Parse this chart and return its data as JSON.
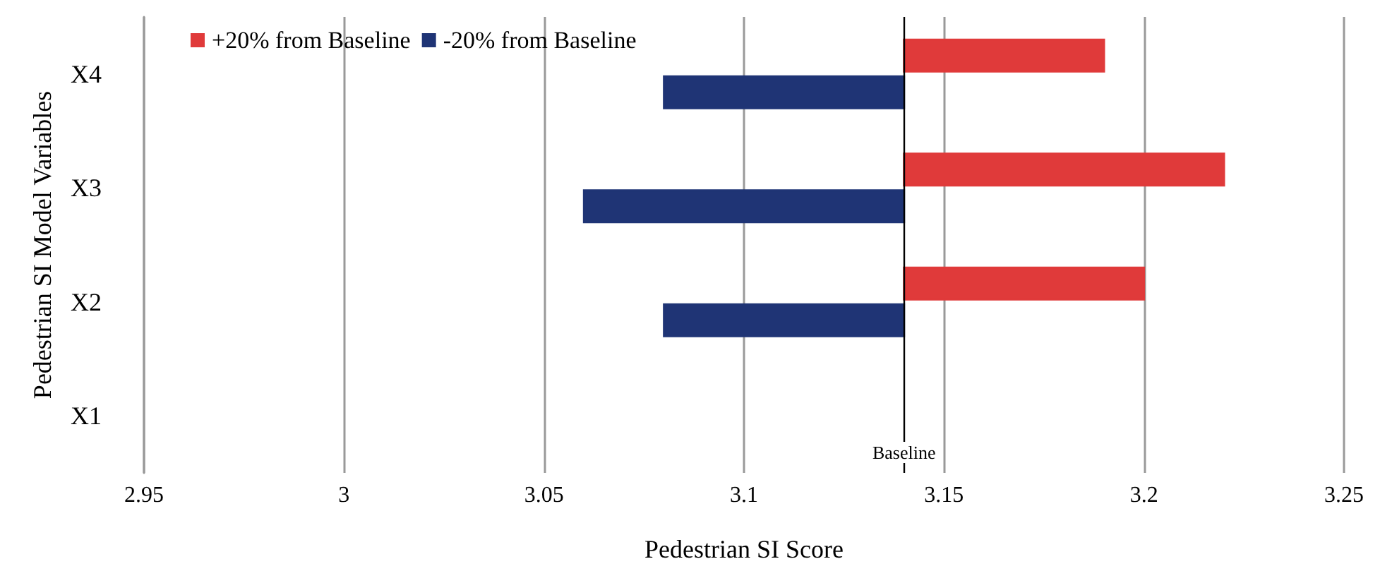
{
  "chart_data": {
    "type": "bar",
    "orientation": "horizontal",
    "xlabel": "Pedestrian SI Score",
    "ylabel": "Pedestrian SI Model Variables",
    "categories": [
      "X4",
      "X3",
      "X2",
      "X1"
    ],
    "series": [
      {
        "name": "+20% from Baseline",
        "color": "#e03a3a",
        "base": [
          3.14,
          3.14,
          3.14,
          null
        ],
        "values": [
          0.05,
          0.08,
          0.06,
          null
        ]
      },
      {
        "name": "-20% from Baseline",
        "color": "#1f3475",
        "base": [
          3.14,
          3.14,
          3.14,
          null
        ],
        "values": [
          -0.06,
          -0.08,
          -0.06,
          null
        ]
      }
    ],
    "xlim": [
      2.95,
      3.25
    ],
    "xticks": [
      2.95,
      3,
      3.05,
      3.1,
      3.15,
      3.2,
      3.25
    ],
    "grid": "x",
    "legend": "top left",
    "ref_lines": [
      {
        "axis": "x",
        "value": 3.14,
        "label": "Baseline",
        "color": "#000000"
      }
    ]
  }
}
